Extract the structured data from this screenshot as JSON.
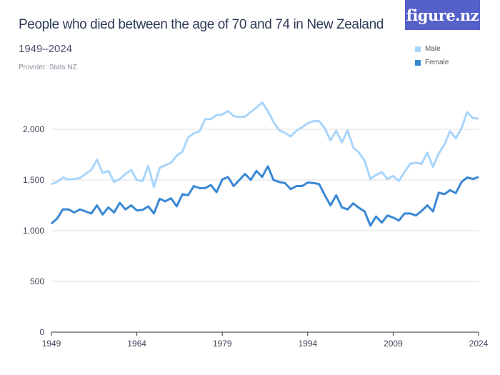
{
  "header": {
    "title": "People who died between the age of 70 and 74 in New Zealand",
    "subtitle": "1949–2024",
    "provider": "Provider: Stats NZ",
    "logo": "figure.nz"
  },
  "chart_data": {
    "type": "line",
    "title": "People who died between the age of 70 and 74 in New Zealand",
    "xlabel": "",
    "ylabel": "",
    "ylim": [
      0,
      2300
    ],
    "xlim": [
      1949,
      2024
    ],
    "yticks": [
      0,
      500,
      1000,
      1500,
      2000
    ],
    "ytick_labels": [
      "0",
      "500",
      "1,000",
      "1,500",
      "2,000"
    ],
    "xticks": [
      1949,
      1964,
      1979,
      1994,
      2009,
      2024
    ],
    "xtick_labels": [
      "1949",
      "1964",
      "1979",
      "1994",
      "2009",
      "2024"
    ],
    "grid": true,
    "legend": "top-right",
    "x_start": 1949,
    "series": [
      {
        "name": "Male",
        "color": "#a8d5fb",
        "values": [
          1460,
          1480,
          1525,
          1505,
          1510,
          1520,
          1560,
          1600,
          1700,
          1570,
          1590,
          1480,
          1510,
          1560,
          1600,
          1500,
          1490,
          1640,
          1430,
          1620,
          1645,
          1670,
          1740,
          1780,
          1920,
          1960,
          1980,
          2100,
          2100,
          2140,
          2145,
          2180,
          2130,
          2120,
          2125,
          2170,
          2215,
          2265,
          2180,
          2070,
          1990,
          1965,
          1930,
          1985,
          2020,
          2060,
          2080,
          2080,
          2010,
          1890,
          1985,
          1870,
          1990,
          1820,
          1770,
          1690,
          1510,
          1550,
          1580,
          1510,
          1540,
          1490,
          1580,
          1660,
          1670,
          1660,
          1770,
          1630,
          1760,
          1850,
          1980,
          1910,
          2010,
          2170,
          2110,
          2105
        ]
      },
      {
        "name": "Female",
        "color": "#3a88d4",
        "values": [
          1070,
          1120,
          1210,
          1210,
          1180,
          1210,
          1190,
          1170,
          1250,
          1160,
          1230,
          1180,
          1275,
          1210,
          1250,
          1200,
          1205,
          1240,
          1170,
          1315,
          1290,
          1320,
          1240,
          1360,
          1350,
          1440,
          1420,
          1420,
          1450,
          1380,
          1505,
          1530,
          1440,
          1500,
          1560,
          1500,
          1590,
          1530,
          1635,
          1500,
          1480,
          1470,
          1410,
          1440,
          1440,
          1475,
          1470,
          1460,
          1350,
          1250,
          1350,
          1230,
          1210,
          1270,
          1225,
          1190,
          1050,
          1140,
          1080,
          1150,
          1130,
          1100,
          1170,
          1170,
          1150,
          1195,
          1250,
          1190,
          1375,
          1360,
          1400,
          1370,
          1480,
          1525,
          1510,
          1530
        ]
      }
    ]
  }
}
